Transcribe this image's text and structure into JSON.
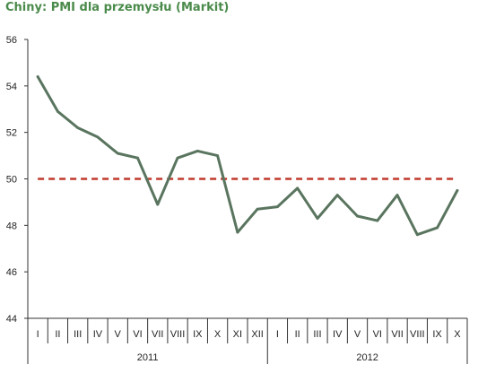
{
  "title": "Chiny: PMI dla przemysłu (Markit)",
  "colors": {
    "title": "#4a8a4a",
    "line": "#5a755f",
    "threshold": "#c0392b",
    "axis": "#333333"
  },
  "chart_data": {
    "type": "line",
    "title": "Chiny: PMI dla przemysłu (Markit)",
    "xlabel": "",
    "ylabel": "",
    "ylim": [
      44,
      56
    ],
    "yticks": [
      44,
      46,
      48,
      50,
      52,
      54,
      56
    ],
    "grid": false,
    "legend": "none",
    "categories": [
      "I",
      "II",
      "III",
      "IV",
      "V",
      "VI",
      "VII",
      "VIII",
      "IX",
      "X",
      "XI",
      "XII",
      "I",
      "II",
      "III",
      "IV",
      "V",
      "VI",
      "VII",
      "VIII",
      "IX",
      "X"
    ],
    "year_groups": [
      {
        "label": "2011",
        "start": 0,
        "end": 11
      },
      {
        "label": "2012",
        "start": 12,
        "end": 21
      }
    ],
    "series": [
      {
        "values": [
          54.4,
          52.9,
          52.2,
          51.8,
          51.1,
          50.9,
          48.9,
          50.9,
          51.2,
          51.0,
          47.7,
          48.7,
          48.8,
          49.6,
          48.3,
          49.3,
          48.4,
          48.2,
          49.3,
          47.6,
          47.9,
          49.5
        ]
      }
    ],
    "reference_line": {
      "value": 50,
      "style": "dashed"
    }
  }
}
